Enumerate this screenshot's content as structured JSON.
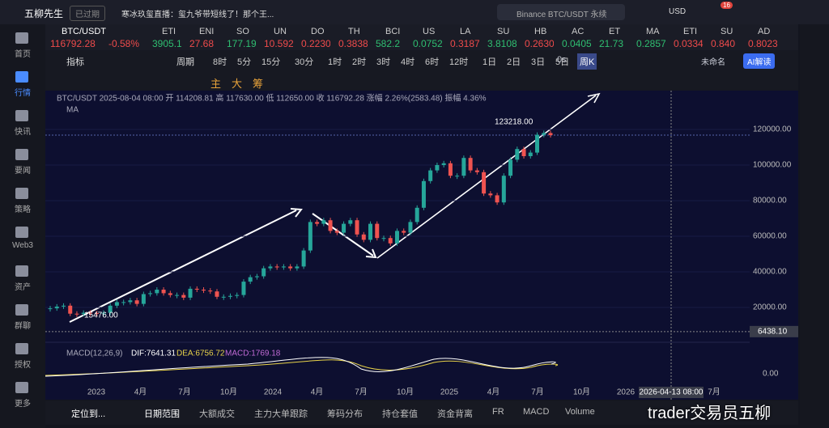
{
  "header": {
    "user": "五柳先生",
    "status": "已过期",
    "news": "寒冰玖玺直播：玺九爷带短线了！那个王...",
    "search": "Binance BTC/USDT 永续",
    "currency": "USD",
    "badge": "16"
  },
  "sidebar": [
    "首页",
    "行情",
    "快讯",
    "要闻",
    "策略",
    "Web3",
    "资产",
    "群聊",
    "授权",
    "更多"
  ],
  "tickers": [
    {
      "sym": "BTC/USDT",
      "price": "116792.28",
      "change": "-0.58%",
      "up": false
    },
    {
      "sym": "ETI",
      "price": "3905.1",
      "up": true
    },
    {
      "sym": "ENI",
      "price": "27.68",
      "up": false
    },
    {
      "sym": "SO",
      "price": "177.19",
      "up": true
    },
    {
      "sym": "UN",
      "price": "10.592",
      "up": false
    },
    {
      "sym": "DO",
      "price": "0.2230",
      "up": false
    },
    {
      "sym": "TH",
      "price": "0.3838",
      "up": false
    },
    {
      "sym": "BCI",
      "price": "582.2",
      "up": true
    },
    {
      "sym": "US",
      "price": "0.0752",
      "up": true
    },
    {
      "sym": "LA",
      "price": "0.3187",
      "up": false
    },
    {
      "sym": "SU",
      "price": "3.8108",
      "up": true
    },
    {
      "sym": "HB",
      "price": "0.2630",
      "up": false
    },
    {
      "sym": "AC",
      "price": "0.0405",
      "up": true
    },
    {
      "sym": "ET",
      "price": "21.73",
      "up": true
    },
    {
      "sym": "MA",
      "price": "0.2857",
      "up": true
    },
    {
      "sym": "ETI",
      "price": "0.0334",
      "up": false
    },
    {
      "sym": "SU",
      "price": "0.840",
      "up": false
    },
    {
      "sym": "AD",
      "price": "0.8023",
      "up": false
    }
  ],
  "toolbar": {
    "indicator": "指标",
    "period": "周期",
    "periods": [
      "8时",
      "5分",
      "15分",
      "30分",
      "1时",
      "2时",
      "3时",
      "4时",
      "6时",
      "12时",
      "1日",
      "2日",
      "3日",
      "5日",
      "周K"
    ],
    "active": "周K",
    "countdown": "0s",
    "layout": "未命名",
    "ai": "AI解读"
  },
  "draw_tools": [
    "主",
    "大",
    "筹"
  ],
  "chart": {
    "info": "BTC/USDT  2025-08-04 08:00  开 114208.81  高 117630.00  低 112650.00  收 116792.28  涨幅 2.26%(2583.48)  振幅 4.36%",
    "ma": "MA",
    "price_axis": [
      {
        "value": 120000,
        "label": "120000.00"
      },
      {
        "value": 100000,
        "label": "100000.00"
      },
      {
        "value": 80000,
        "label": "80000.00"
      },
      {
        "value": 60000,
        "label": "60000.00"
      },
      {
        "value": 40000,
        "label": "40000.00"
      },
      {
        "value": 20000,
        "label": "20000.00"
      }
    ],
    "crosshair": {
      "value": 6438.1,
      "label": "6438.10",
      "time": "2026-04-13 08:00"
    },
    "high": {
      "value": 123218,
      "label": "123218.00"
    },
    "low": {
      "value": 15476,
      "label": "15476.00"
    },
    "x_labels": [
      "2023",
      "4月",
      "7月",
      "10月",
      "2024",
      "4月",
      "7月",
      "10月",
      "2025",
      "4月",
      "7月",
      "10月",
      "2026",
      null,
      "7月"
    ],
    "closes": [
      19500,
      20500,
      21000,
      16500,
      16400,
      17000,
      16800,
      16600,
      17000,
      21000,
      23000,
      23000,
      24000,
      22000,
      27500,
      28000,
      30000,
      28000,
      27000,
      27000,
      25500,
      30500,
      30000,
      29500,
      29000,
      26000,
      26000,
      26500,
      27000,
      34500,
      37000,
      37500,
      42000,
      43000,
      42500,
      43000,
      42000,
      43000,
      52000,
      68000,
      67000,
      69000,
      63000,
      62000,
      67000,
      69000,
      61000,
      58000,
      67000,
      59000,
      59000,
      56000,
      63000,
      62000,
      68000,
      76000,
      91000,
      97000,
      100000,
      101000,
      94000,
      94000,
      104000,
      97000,
      96000,
      84000,
      83000,
      79000,
      94000,
      103000,
      109000,
      105000,
      107000,
      117000,
      118000,
      116792.28
    ],
    "macd": {
      "title": "MACD(12,26,9)",
      "dif": "DIF:7641.31",
      "dea": "DEA:6756.72",
      "macd": "MACD:1769.18",
      "zero": "0.00"
    }
  },
  "bottom_tabs": [
    "定位到...",
    "日期范围",
    "大额成交",
    "主力大单跟踪",
    "筹码分布",
    "持仓套值",
    "资金背离",
    "FR",
    "MACD",
    "Volume"
  ],
  "watermark": "trader交易员五柳"
}
